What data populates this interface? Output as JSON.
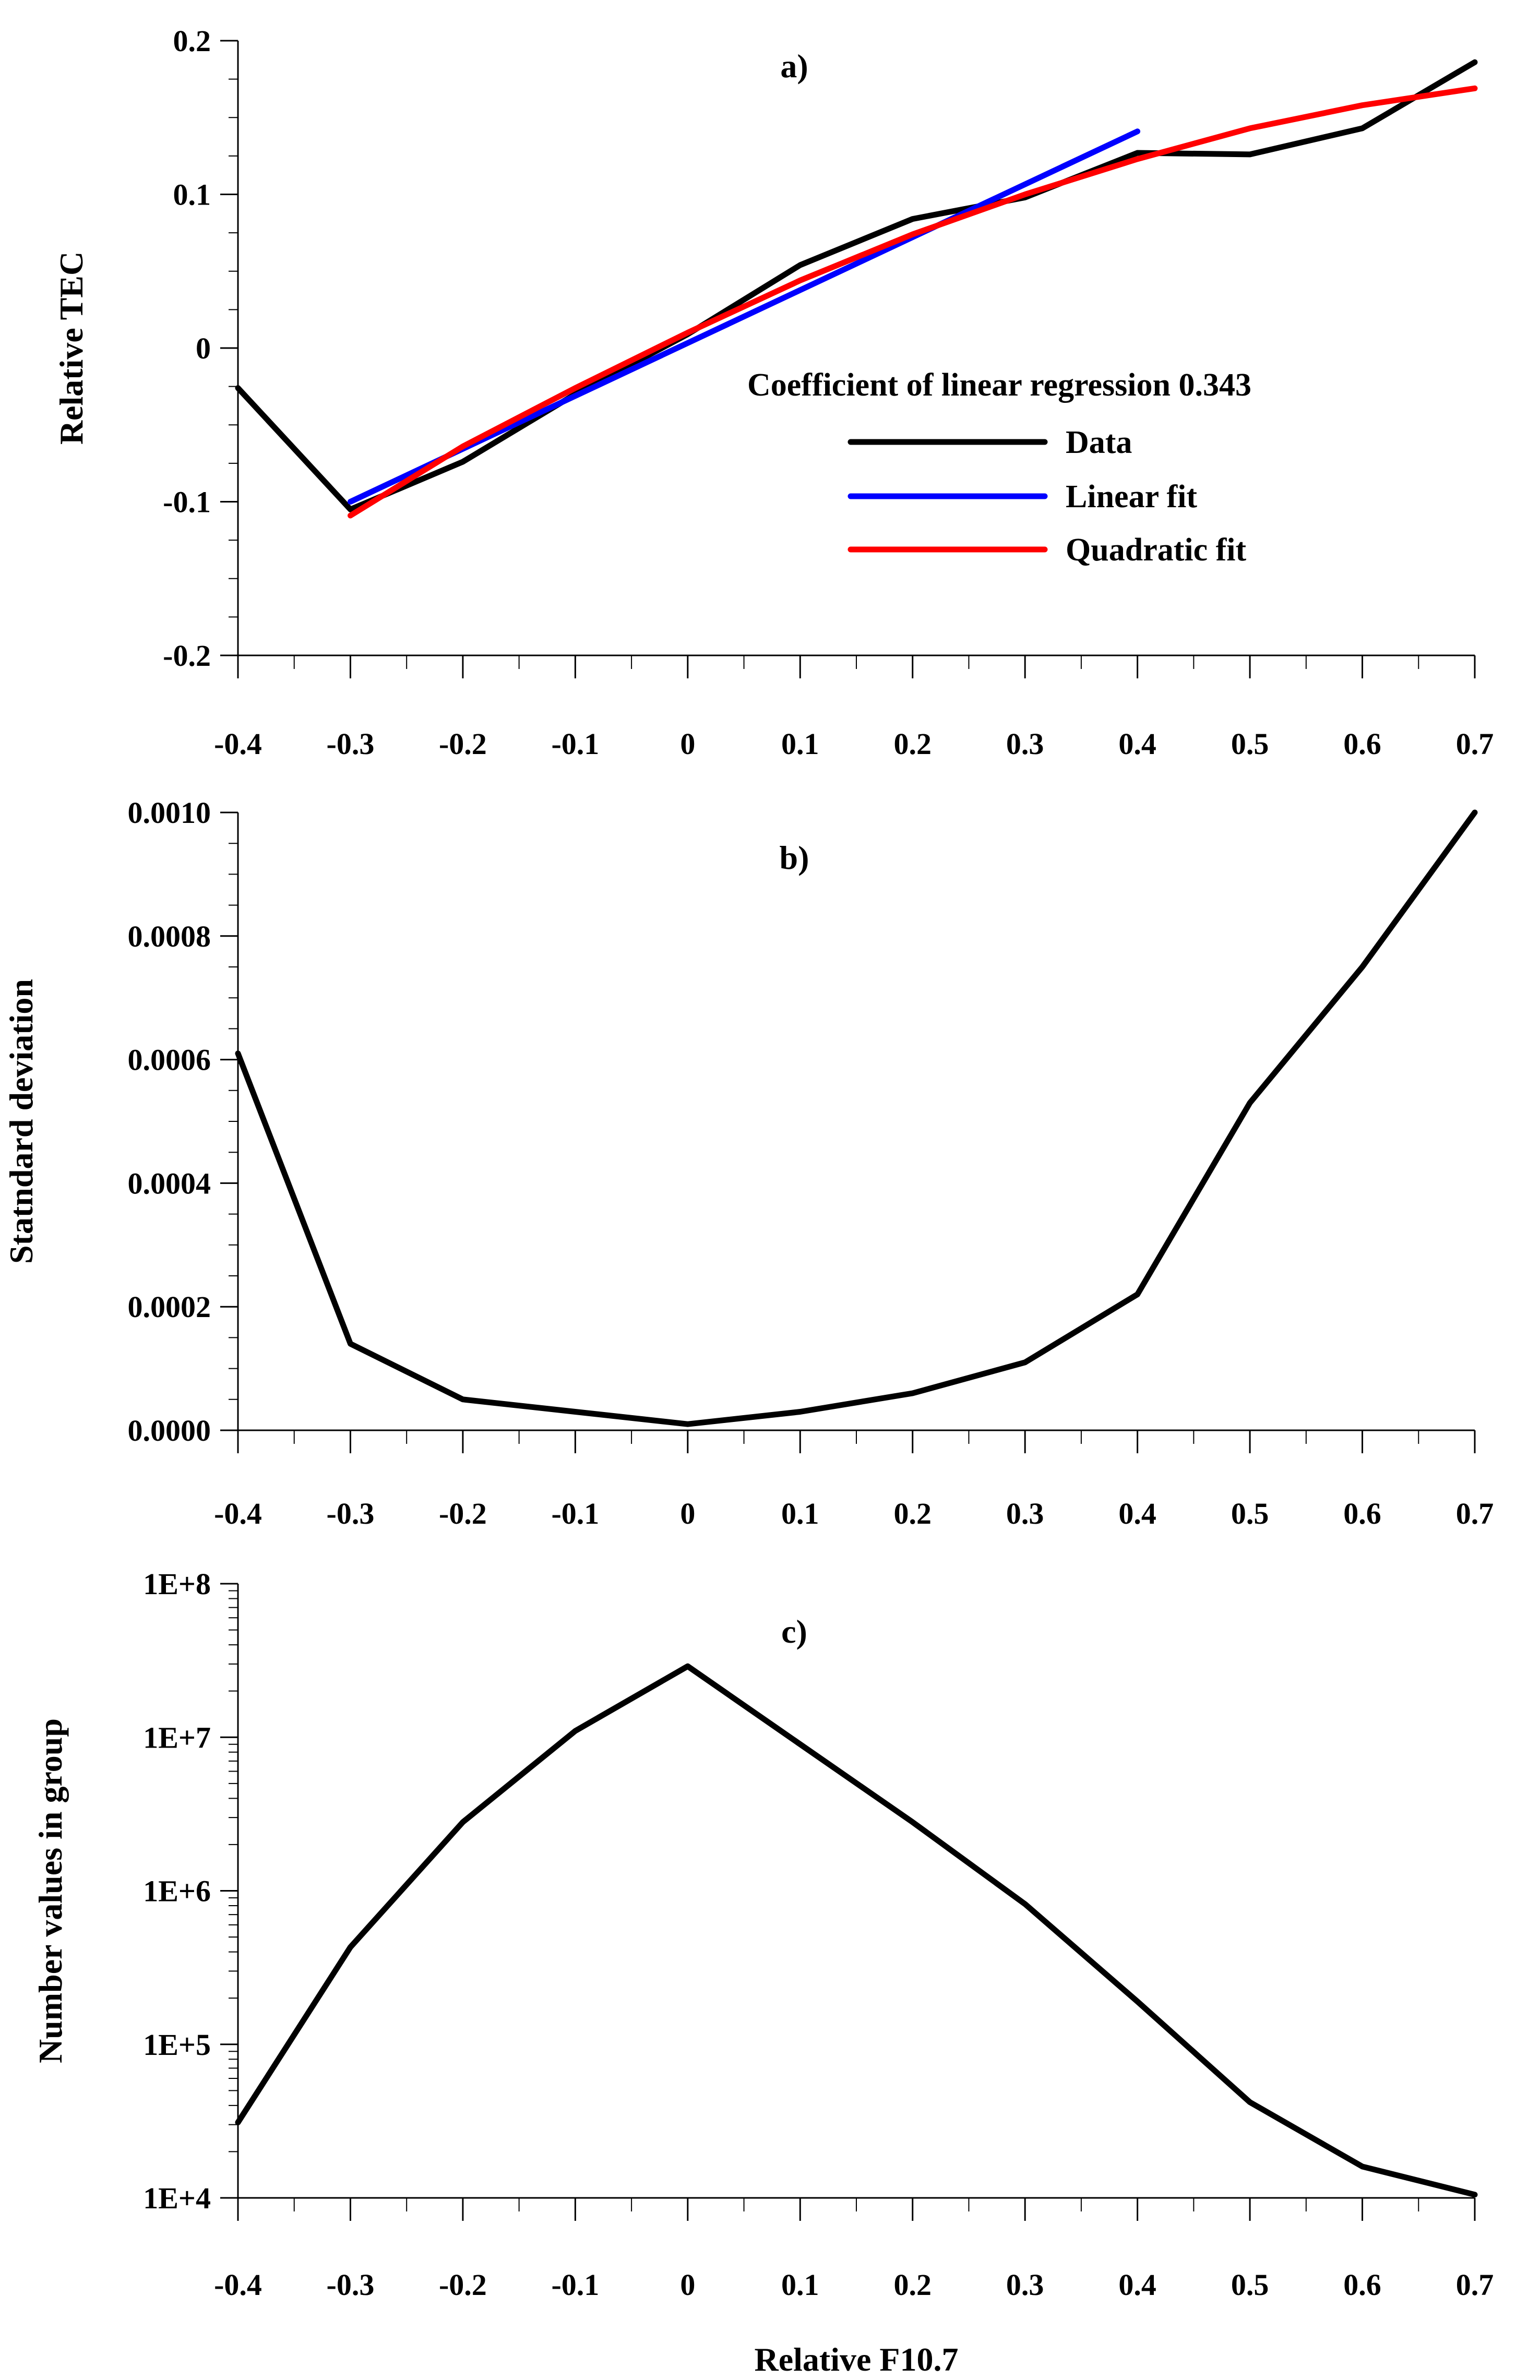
{
  "chart_data": [
    {
      "type": "line",
      "panel_label": "a)",
      "ylabel": "Relative TEC",
      "xlabel": "",
      "xlim": [
        -0.4,
        0.7
      ],
      "ylim": [
        -0.2,
        0.2
      ],
      "x_ticks": [
        -0.4,
        -0.3,
        -0.2,
        -0.1,
        0,
        0.1,
        0.2,
        0.3,
        0.4,
        0.5,
        0.6,
        0.7
      ],
      "x_tick_labels": [
        "-0.4",
        "-0.3",
        "-0.2",
        "-0.1",
        "0",
        "0.1",
        "0.2",
        "0.3",
        "0.4",
        "0.5",
        "0.6",
        "0.7"
      ],
      "y_ticks": [
        -0.2,
        -0.1,
        0,
        0.1,
        0.2
      ],
      "y_tick_labels": [
        "-0.2",
        "-0.1",
        "0",
        "0.1",
        "0.2"
      ],
      "annotation": "Coefficient of linear regression 0.343",
      "legend_position": "center-right",
      "series": [
        {
          "name": "Data",
          "color": "#000000",
          "x": [
            -0.4,
            -0.3,
            -0.2,
            -0.1,
            0,
            0.1,
            0.2,
            0.3,
            0.4,
            0.5,
            0.6,
            0.7
          ],
          "y": [
            -0.026,
            -0.105,
            -0.074,
            -0.03,
            0.009,
            0.054,
            0.084,
            0.098,
            0.127,
            0.126,
            0.143,
            0.186
          ]
        },
        {
          "name": "Linear fit",
          "color": "#0000ff",
          "x": [
            -0.3,
            0.4
          ],
          "y": [
            -0.1,
            0.141
          ]
        },
        {
          "name": "Quadratic fit",
          "color": "#ff0000",
          "x": [
            -0.3,
            -0.2,
            -0.1,
            0,
            0.1,
            0.2,
            0.3,
            0.4,
            0.5,
            0.6,
            0.7
          ],
          "y": [
            -0.109,
            -0.064,
            -0.026,
            0.01,
            0.044,
            0.074,
            0.1,
            0.123,
            0.143,
            0.158,
            0.169
          ]
        }
      ]
    },
    {
      "type": "line",
      "panel_label": "b)",
      "ylabel": "Statndard deviation",
      "xlabel": "",
      "xlim": [
        -0.4,
        0.7
      ],
      "ylim": [
        0,
        0.001
      ],
      "x_ticks": [
        -0.4,
        -0.3,
        -0.2,
        -0.1,
        0,
        0.1,
        0.2,
        0.3,
        0.4,
        0.5,
        0.6,
        0.7
      ],
      "x_tick_labels": [
        "-0.4",
        "-0.3",
        "-0.2",
        "-0.1",
        "0",
        "0.1",
        "0.2",
        "0.3",
        "0.4",
        "0.5",
        "0.6",
        "0.7"
      ],
      "y_ticks": [
        0,
        0.0002,
        0.0004,
        0.0006,
        0.0008,
        0.001
      ],
      "y_tick_labels": [
        "0.0000",
        "0.0002",
        "0.0004",
        "0.0006",
        "0.0008",
        "0.0010"
      ],
      "series": [
        {
          "name": "Standard deviation",
          "color": "#000000",
          "x": [
            -0.4,
            -0.3,
            -0.2,
            -0.1,
            0,
            0.1,
            0.2,
            0.3,
            0.4,
            0.5,
            0.6,
            0.7
          ],
          "y": [
            0.00061,
            0.00014,
            5e-05,
            3e-05,
            1e-05,
            3e-05,
            6e-05,
            0.00011,
            0.00022,
            0.00053,
            0.00075,
            0.001
          ]
        }
      ]
    },
    {
      "type": "line",
      "panel_label": "c)",
      "ylabel": "Number values in group",
      "xlabel": "Relative F10.7",
      "xlim": [
        -0.4,
        0.7
      ],
      "ylim": [
        10000,
        100000000
      ],
      "yscale": "log",
      "x_ticks": [
        -0.4,
        -0.3,
        -0.2,
        -0.1,
        0,
        0.1,
        0.2,
        0.3,
        0.4,
        0.5,
        0.6,
        0.7
      ],
      "x_tick_labels": [
        "-0.4",
        "-0.3",
        "-0.2",
        "-0.1",
        "0",
        "0.1",
        "0.2",
        "0.3",
        "0.4",
        "0.5",
        "0.6",
        "0.7"
      ],
      "y_ticks": [
        10000,
        100000,
        1000000,
        10000000,
        100000000
      ],
      "y_tick_labels": [
        "1E+4",
        "1E+5",
        "1E+6",
        "1E+7",
        "1E+8"
      ],
      "series": [
        {
          "name": "Number values in group",
          "color": "#000000",
          "x": [
            -0.4,
            -0.3,
            -0.2,
            -0.1,
            0,
            0.1,
            0.2,
            0.3,
            0.4,
            0.5,
            0.6,
            0.7
          ],
          "y": [
            31000,
            430000,
            2800000,
            11000000,
            29000000,
            9000000,
            2800000,
            820000,
            190000,
            42000,
            16000,
            10500
          ]
        }
      ]
    }
  ]
}
